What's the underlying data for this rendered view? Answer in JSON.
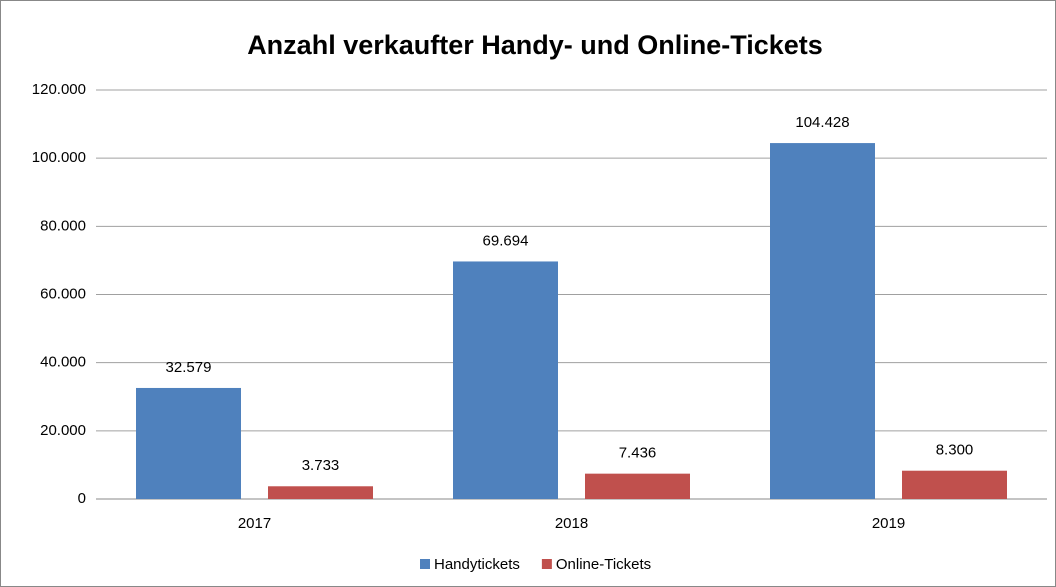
{
  "chart_data": {
    "type": "bar",
    "title": "Anzahl verkaufter Handy- und Online-Tickets",
    "categories": [
      "2017",
      "2018",
      "2019"
    ],
    "series": [
      {
        "name": "Handytickets",
        "color": "#4f81bd",
        "values": [
          32579,
          69694,
          104428
        ],
        "value_labels": [
          "32.579",
          "69.694",
          "104.428"
        ]
      },
      {
        "name": "Online-Tickets",
        "color": "#c0504d",
        "values": [
          3733,
          7436,
          8300
        ],
        "value_labels": [
          "3.733",
          "7.436",
          "8.300"
        ]
      }
    ],
    "ylim": [
      0,
      120000
    ],
    "yticks": [
      0,
      {
        "value": 20000,
        "label": "20.000"
      },
      {
        "value": 40000,
        "label": "40.000"
      },
      {
        "value": 60000,
        "label": "60.000"
      },
      {
        "value": 80000,
        "label": "80.000"
      },
      {
        "value": 100000,
        "label": "100.000"
      },
      {
        "value": 120000,
        "label": "120.000"
      }
    ],
    "grid": true,
    "legend": "bottom"
  }
}
